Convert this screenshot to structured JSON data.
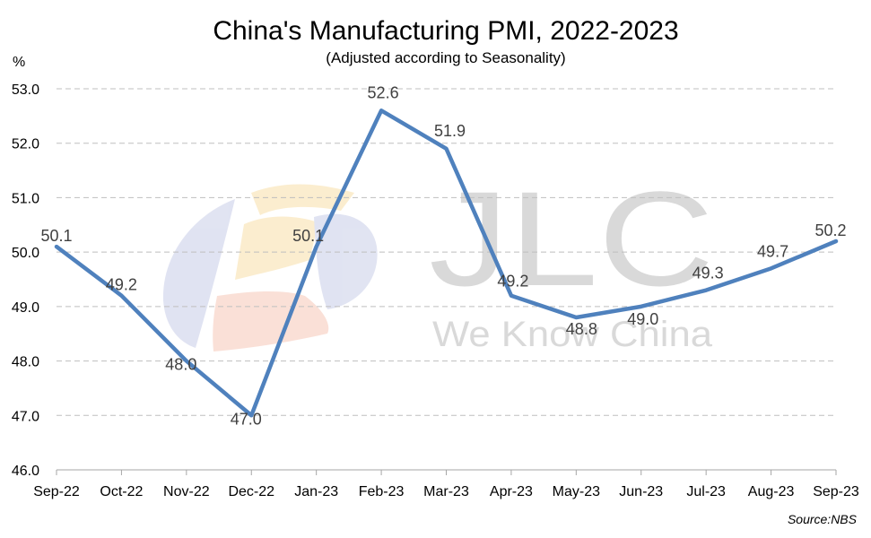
{
  "chart_data": {
    "type": "line",
    "title": "China's Manufacturing PMI, 2022-2023",
    "subtitle": "(Adjusted according to Seasonality)",
    "y_unit": "%",
    "categories": [
      "Sep-22",
      "Oct-22",
      "Nov-22",
      "Dec-22",
      "Jan-23",
      "Feb-23",
      "Mar-23",
      "Apr-23",
      "May-23",
      "Jun-23",
      "Jul-23",
      "Aug-23",
      "Sep-23"
    ],
    "series": [
      {
        "values": [
          50.1,
          49.2,
          48.0,
          47.0,
          50.1,
          52.6,
          51.9,
          49.2,
          48.8,
          49.0,
          49.3,
          49.7,
          50.2
        ]
      }
    ],
    "data_labels": [
      "50.1",
      "49.2",
      "48.0",
      "47.0",
      "50.1",
      "52.6",
      "51.9",
      "49.2",
      "48.8",
      "49.0",
      "49.3",
      "49.7",
      "50.2"
    ],
    "y_ticks": [
      "46.0",
      "47.0",
      "48.0",
      "49.0",
      "50.0",
      "51.0",
      "52.0",
      "53.0"
    ],
    "ylim": [
      46,
      53
    ],
    "grid": true,
    "line_color": "#4f81bd",
    "source": "Source:NBS"
  },
  "watermark": {
    "brand": "JLC",
    "tagline": "We Know China"
  }
}
